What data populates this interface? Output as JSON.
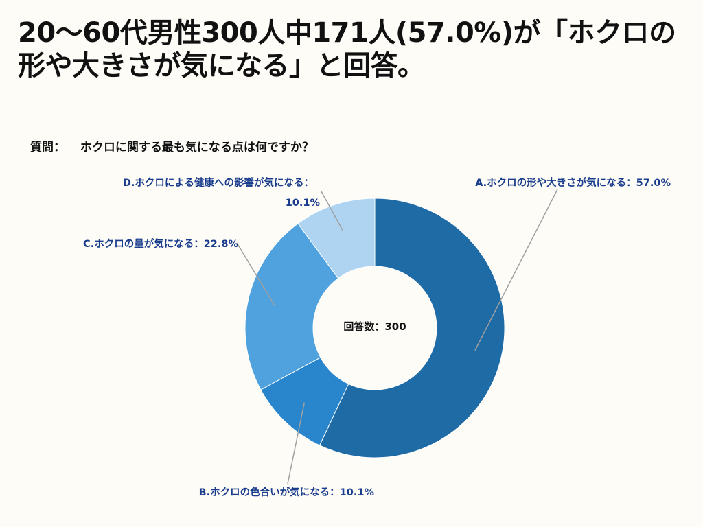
{
  "title": "20〜60代男性300人中171人(57.0%)が「ホクロの形や大きさが気になる」と回答。",
  "question": {
    "label": "質問：",
    "text": "ホクロに関する最も気になる点は何ですか？"
  },
  "chart_data": {
    "type": "donut",
    "center_label": "回答数：300",
    "slices": [
      {
        "name": "A.ホクロの形や大きさが気になる",
        "label": "A.ホクロの形や大きさが気になる：57.0%",
        "value": 57.0,
        "color": "#1f6ba6"
      },
      {
        "name": "B.ホクロの色合いが気になる",
        "label": "B.ホクロの色合いが気になる：10.1%",
        "value": 10.1,
        "color": "#2a86cc"
      },
      {
        "name": "C.ホクロの量が気になる",
        "label": "C.ホクロの量が気になる：22.8%",
        "value": 22.8,
        "color": "#4fa2de"
      },
      {
        "name": "D.ホクロによる健康への影響が気になる",
        "label_line1": "D.ホクロによる健康への影響が気になる：",
        "label_line2": "10.1%",
        "value": 10.1,
        "color": "#aed4f2"
      }
    ],
    "leader_color": "#a0a0a0"
  }
}
